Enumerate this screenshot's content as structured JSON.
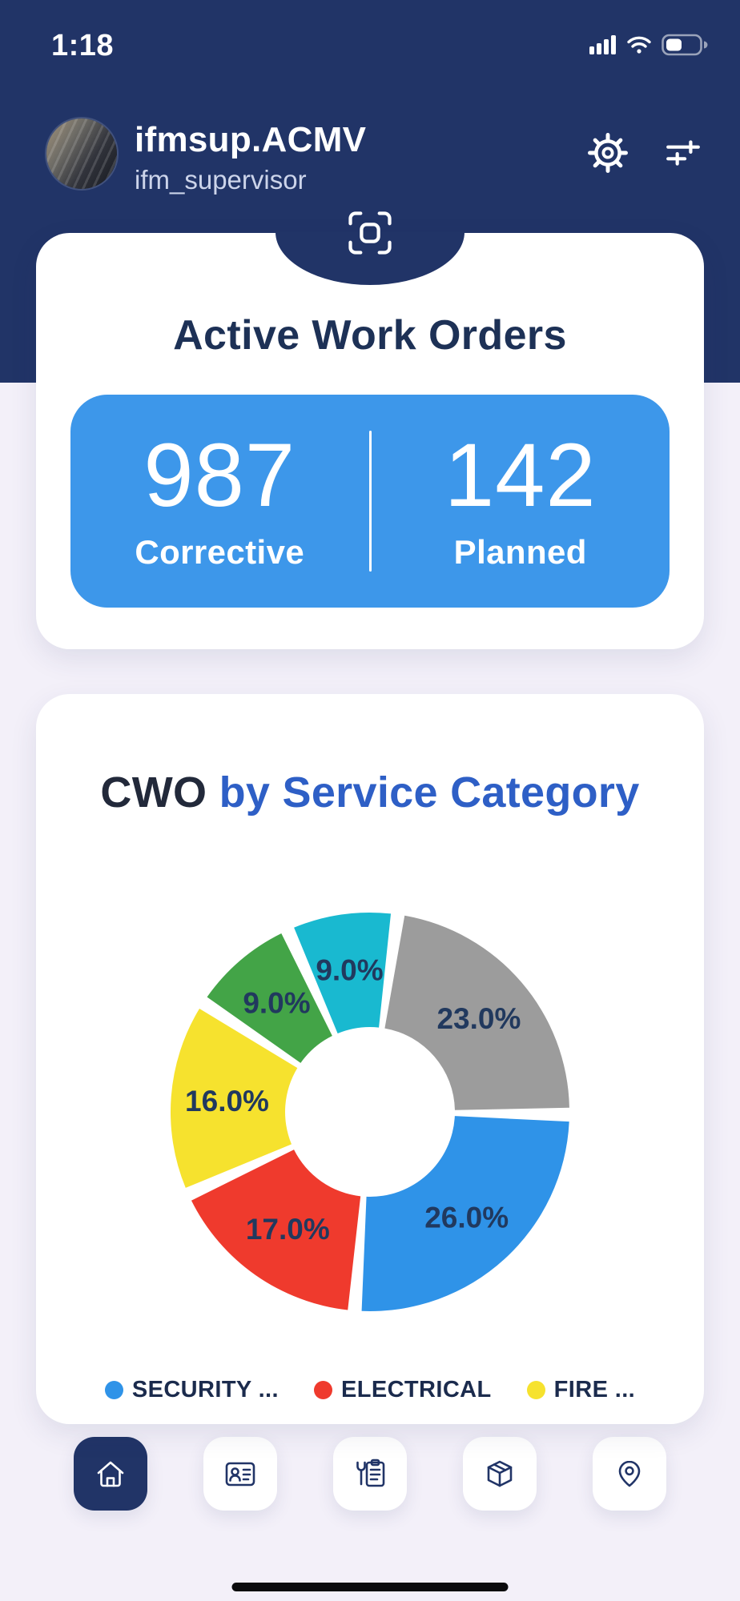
{
  "status_bar": {
    "time": "1:18",
    "icons": [
      "signal-bars-icon",
      "wifi-icon",
      "battery-icon"
    ]
  },
  "header": {
    "title": "ifmsup.ACMV",
    "subtitle": "ifm_supervisor",
    "background_color": "#213467",
    "icons": [
      "gear-icon",
      "filter-icon",
      "scan-icon"
    ]
  },
  "active_work_orders": {
    "title": "Active Work Orders",
    "panel_color": "#3d97ea",
    "stats": [
      {
        "value": "987",
        "label": "Corrective"
      },
      {
        "value": "142",
        "label": "Planned"
      }
    ]
  },
  "cwo_chart_card": {
    "title_dark": "CWO",
    "title_blue": " by Service Category"
  },
  "chart_data": {
    "type": "pie",
    "donut": true,
    "title": "CWO by Service Category",
    "start_angle_deg": 8,
    "unit": "%",
    "legend_position": "bottom",
    "slices": [
      {
        "label": "",
        "value": 23.0,
        "color": "#9c9c9c"
      },
      {
        "label": "SECURITY ...",
        "value": 26.0,
        "color": "#2f93e8"
      },
      {
        "label": "ELECTRICAL",
        "value": 17.0,
        "color": "#ef3a2d"
      },
      {
        "label": "FIRE ...",
        "value": 16.0,
        "color": "#f6e22e"
      },
      {
        "label": "",
        "value": 9.0,
        "color": "#43a447"
      },
      {
        "label": "",
        "value": 9.0,
        "color": "#19b9d0"
      }
    ],
    "legend": [
      {
        "label": "SECURITY ...",
        "color": "#2f93e8"
      },
      {
        "label": "ELECTRICAL",
        "color": "#ef3a2d"
      },
      {
        "label": "FIRE ...",
        "color": "#f6e22e"
      }
    ]
  },
  "bottom_nav": {
    "items": [
      {
        "name": "home",
        "active": true
      },
      {
        "name": "technicians",
        "active": false
      },
      {
        "name": "work-tools",
        "active": false
      },
      {
        "name": "assets",
        "active": false
      },
      {
        "name": "locations",
        "active": false
      }
    ]
  }
}
